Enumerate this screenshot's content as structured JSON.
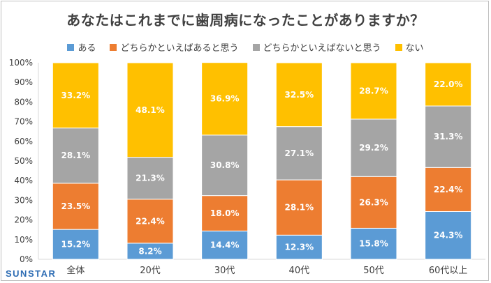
{
  "chart_data": {
    "type": "bar",
    "stacked": true,
    "title": "あなたはこれまでに歯周病になったことがありますか？",
    "categories": [
      "全体",
      "20代",
      "30代",
      "40代",
      "50代",
      "60代以上"
    ],
    "series": [
      {
        "name": "ある",
        "color": "#5b9bd5",
        "values": [
          15.2,
          8.2,
          14.4,
          12.3,
          15.8,
          24.3
        ],
        "labels": [
          "15.2%",
          "8.2%",
          "14.4%",
          "12.3%",
          "15.8%",
          "24.3%"
        ]
      },
      {
        "name": "どちらかといえばあると思う",
        "color": "#ed7d31",
        "values": [
          23.5,
          22.4,
          18.0,
          28.1,
          26.3,
          22.4
        ],
        "labels": [
          "23.5%",
          "22.4%",
          "18.0%",
          "28.1%",
          "26.3%",
          "22.4%"
        ]
      },
      {
        "name": "どちらかといえばないと思う",
        "color": "#a5a5a5",
        "values": [
          28.1,
          21.3,
          30.8,
          27.1,
          29.2,
          31.3
        ],
        "labels": [
          "28.1%",
          "21.3%",
          "30.8%",
          "27.1%",
          "29.2%",
          "31.3%"
        ]
      },
      {
        "name": "ない",
        "color": "#ffc000",
        "values": [
          33.2,
          48.1,
          36.9,
          32.5,
          28.7,
          22.0
        ],
        "labels": [
          "33.2%",
          "48.1%",
          "36.9%",
          "32.5%",
          "28.7%",
          "22.0%"
        ]
      }
    ],
    "yticks": [
      "0%",
      "10%",
      "20%",
      "30%",
      "40%",
      "50%",
      "60%",
      "70%",
      "80%",
      "90%",
      "100%"
    ],
    "ylim": [
      0,
      100
    ],
    "grid": false,
    "legend": "top-center"
  },
  "brand": "SUNSTAR",
  "colors": {
    "axis": "#d9d9d9",
    "text": "#404040",
    "label": "#ffffff",
    "brand": "#2e6db4"
  }
}
